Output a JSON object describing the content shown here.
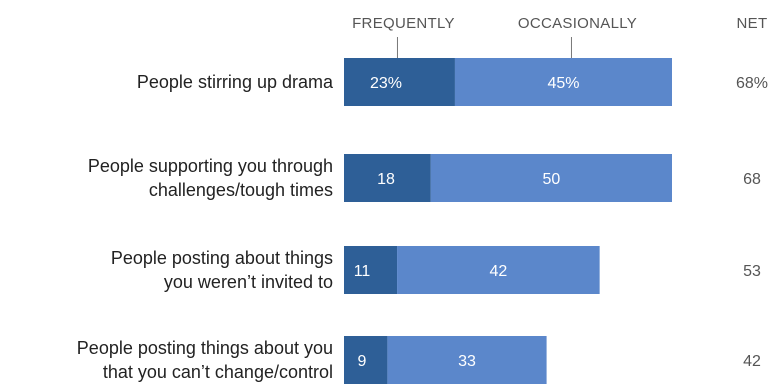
{
  "chart_data": {
    "type": "bar",
    "orientation": "horizontal",
    "stacked": true,
    "title": "",
    "xlabel": "",
    "ylabel": "",
    "xlim": [
      0,
      70
    ],
    "grid": false,
    "legend_placement": "top, directly labeling the first bar",
    "categories": [
      [
        "People stirring up drama"
      ],
      [
        "People supporting you through",
        "challenges/tough times"
      ],
      [
        "People posting about things",
        "you weren’t invited to"
      ],
      [
        "People posting things about you",
        "that you can’t change/control"
      ]
    ],
    "series": [
      {
        "name": "FREQUENTLY",
        "values": [
          23,
          18,
          11,
          9
        ],
        "labels": [
          "23%",
          "18",
          "11",
          "9"
        ],
        "color": "#2e5f97"
      },
      {
        "name": "OCCASIONALLY",
        "values": [
          45,
          50,
          42,
          33
        ],
        "labels": [
          "45%",
          "50",
          "42",
          "33"
        ],
        "color": "#5b87cb"
      }
    ],
    "net": {
      "header": "NET",
      "values": [
        68,
        68,
        53,
        42
      ],
      "labels": [
        "68%",
        "68",
        "53",
        "42"
      ]
    }
  }
}
